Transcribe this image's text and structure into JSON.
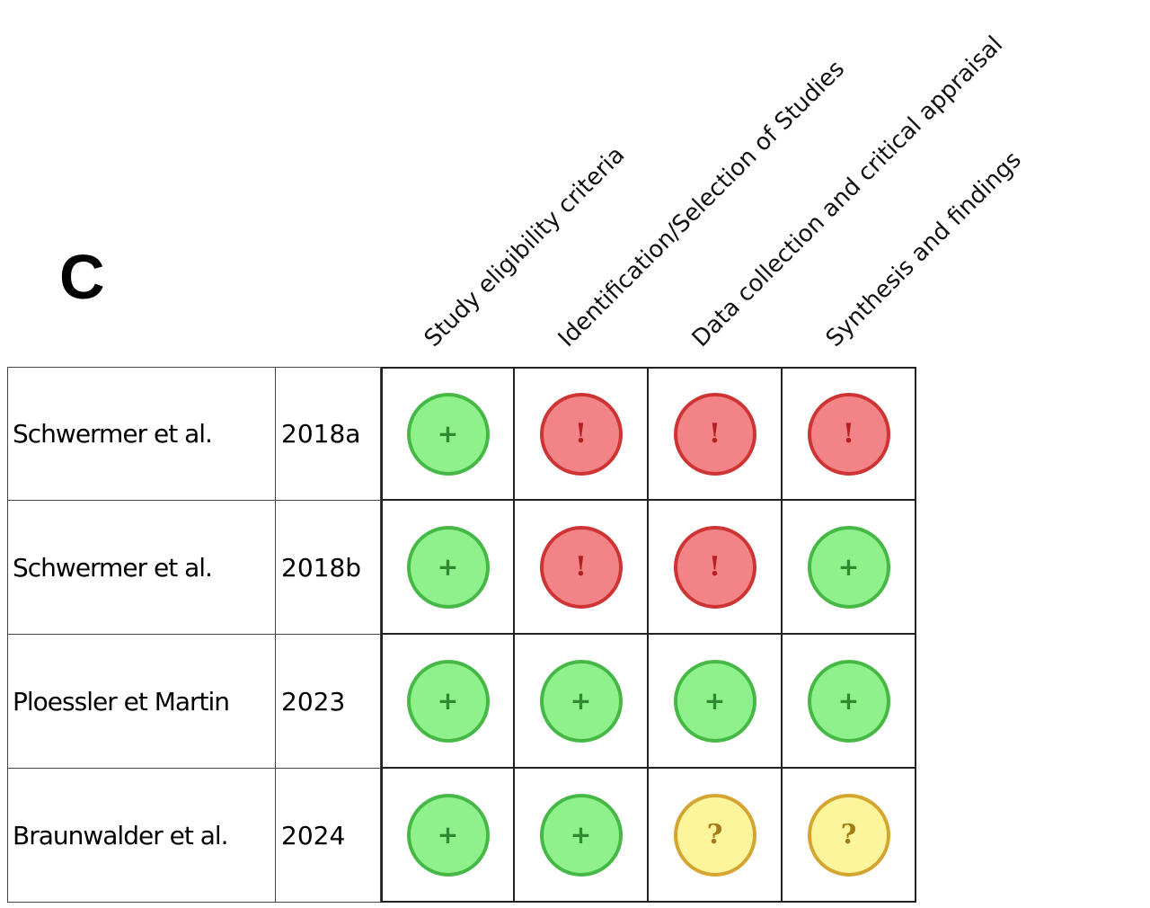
{
  "panel_label": "C",
  "columns": [
    "Study eligibility criteria",
    "Identification/Selection of Studies",
    "Data collection and critical appraisal",
    "Synthesis and findings"
  ],
  "rows": [
    {
      "study": "Schwermer et al.",
      "year": "2018a",
      "judgements": [
        {
          "level": "low",
          "symbol": "+"
        },
        {
          "level": "high",
          "symbol": "!"
        },
        {
          "level": "high",
          "symbol": "!"
        },
        {
          "level": "high",
          "symbol": "!"
        }
      ]
    },
    {
      "study": "Schwermer et al.",
      "year": "2018b",
      "judgements": [
        {
          "level": "low",
          "symbol": "+"
        },
        {
          "level": "high",
          "symbol": "!"
        },
        {
          "level": "high",
          "symbol": "!"
        },
        {
          "level": "low",
          "symbol": "+"
        }
      ]
    },
    {
      "study": "Ploessler et Martin",
      "year": "2023",
      "judgements": [
        {
          "level": "low",
          "symbol": "+"
        },
        {
          "level": "low",
          "symbol": "+"
        },
        {
          "level": "low",
          "symbol": "+"
        },
        {
          "level": "low",
          "symbol": "+"
        }
      ]
    },
    {
      "study": "Braunwalder et al.",
      "year": "2024",
      "judgements": [
        {
          "level": "low",
          "symbol": "+"
        },
        {
          "level": "low",
          "symbol": "+"
        },
        {
          "level": "some",
          "symbol": "?"
        },
        {
          "level": "some",
          "symbol": "?"
        }
      ]
    }
  ],
  "colors": {
    "low_fill": "#8ef18c",
    "low_border": "#45b845",
    "high_fill": "#f28487",
    "high_border": "#cf3434",
    "some_fill": "#fdf59c",
    "some_border": "#d4a530"
  }
}
